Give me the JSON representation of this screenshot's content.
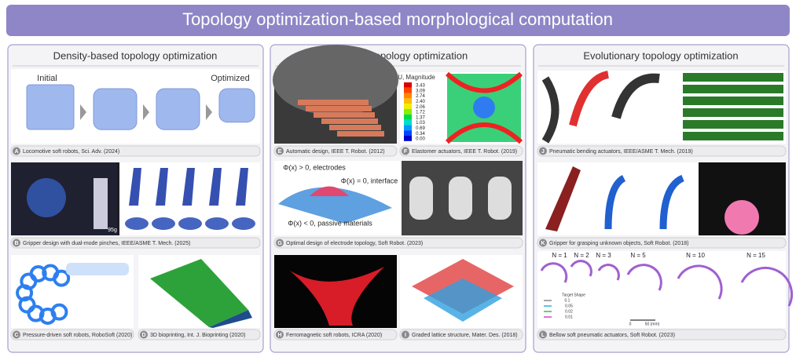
{
  "title": "Topology optimization-based morphological computation",
  "columns": [
    {
      "heading": "Density-based topology optimization",
      "panels": [
        {
          "letter": "A",
          "caption": "Locomotive soft robots, Sci. Adv. (2024)",
          "labels": [
            "Initial",
            "Optimized"
          ]
        },
        {
          "letter": "B",
          "caption": "Gripper design with dual-mode pinches, IEEE/ASME T. Mech. (2025)",
          "labels": [
            "95g"
          ]
        },
        {
          "letter": "C",
          "caption": "Pressure-driven soft robots, RoboSoft (2020)"
        },
        {
          "letter": "D",
          "caption": "3D bioprinting, Int. J. Bioprinting (2020)"
        }
      ]
    },
    {
      "heading": "Level-set topology optimization",
      "panels": [
        {
          "letter": "E",
          "caption": "Automatic design, IEEE T. Robot. (2012)"
        },
        {
          "letter": "F",
          "caption": "Elastomer actuators, IEEE T. Robot. (2019)",
          "labels": [
            "U, Magnitude",
            "3.43",
            "3.09",
            "2.74",
            "2.40",
            "2.06",
            "1.72",
            "1.37",
            "1.03",
            "0.69",
            "0.34",
            "0.00"
          ]
        },
        {
          "letter": "G",
          "caption": "Optimal design of electrode topology, Soft Robot. (2023)",
          "labels": [
            "Φ(x) > 0, electrodes",
            "Φ(x) = 0, interface",
            "Φ(x) < 0, passive materials"
          ]
        },
        {
          "letter": "H",
          "caption": "Ferromagnetic soft  robots, ICRA (2020)"
        },
        {
          "letter": "I",
          "caption": "Graded lattice structure, Mater. Des. (2018)"
        }
      ]
    },
    {
      "heading": "Evolutionary topology optimization",
      "panels": [
        {
          "letter": "J",
          "caption": "Pneumatic bending actuators, IEEE/ASME T. Mech. (2019)"
        },
        {
          "letter": "K",
          "caption": "Gripper for grasping unknown objects, Soft Robot. (2018)"
        },
        {
          "letter": "L",
          "caption": "Bellow soft pneumatic actuators, Soft Robot. (2023)",
          "labels": [
            "N = 1",
            "N = 2",
            "N = 3",
            "N = 5",
            "N = 10",
            "N = 15",
            "Target Shape",
            "0.1",
            "0.05",
            "0.02",
            "0.01",
            "0",
            "50 (mm)"
          ]
        }
      ]
    }
  ]
}
